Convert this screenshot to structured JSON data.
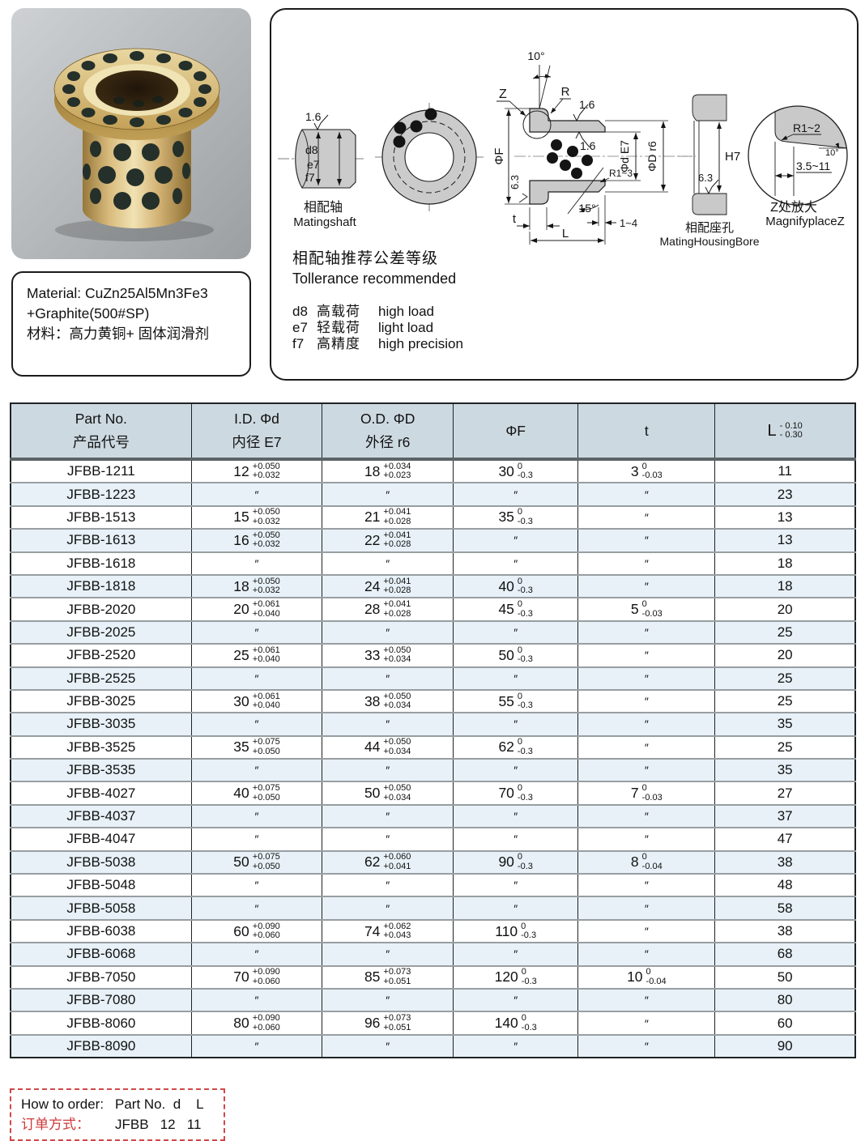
{
  "material": {
    "line1": "Material: CuZn25Al5Mn3Fe3",
    "line2": "+Graphite(500#SP)",
    "line3": "材料：高力黄铜+ 固体润滑剂"
  },
  "diagram": {
    "shaft": {
      "finish": "1.6",
      "d8": "d8",
      "e7": "e7",
      "f7": "f7",
      "cap_cn": "相配轴",
      "cap_en": "Matingshaft"
    },
    "section": {
      "ang10": "10°",
      "z": "Z",
      "r": "R",
      "fin1": "1.6",
      "fin2": "1.6",
      "phiF": "ΦF",
      "fin63": "6.3",
      "phid": "Φd E7",
      "phiD": "ΦD r6",
      "r13": "R1~3",
      "ang15": "15°",
      "t": "t",
      "L": "L",
      "chamfer": "1~4"
    },
    "housing": {
      "h7": "H7",
      "fin": "6.3",
      "cap_cn": "相配座孔",
      "cap_en": "MatingHousingBore"
    },
    "magnify": {
      "r12": "R1~2",
      "ang": "10°",
      "range": "3.5~11",
      "cap_cn": "Z处放大",
      "cap_en": "MagnifyplaceZ"
    },
    "tol": {
      "cn": "相配轴推荐公差等级",
      "en": "Tollerance recommended",
      "items": [
        {
          "c": "d8",
          "cn": "高载荷",
          "en": "high load"
        },
        {
          "c": "e7",
          "cn": "轻载荷",
          "en": "light load"
        },
        {
          "c": "f7",
          "cn": "高精度",
          "en": "high precision"
        }
      ]
    }
  },
  "table": {
    "headers": {
      "part_en": "Part No.",
      "part_cn": "产品代号",
      "id_en": "I.D.  Φd",
      "id_cn": "内径  E7",
      "od_en": "O.D.  ΦD",
      "od_cn": "外径  r6",
      "f": "ΦF",
      "t": "t",
      "L": "L",
      "L_top": "- 0.10",
      "L_bottom": "- 0.30"
    },
    "ditto": "″",
    "rows": [
      {
        "part": "JFBB-1211",
        "id": [
          "12",
          "+0.050",
          "+0.032"
        ],
        "od": [
          "18",
          "+0.034",
          "+0.023"
        ],
        "f": [
          "30",
          "0",
          "-0.3"
        ],
        "t": [
          "3",
          "0",
          "-0.03"
        ],
        "L": "11"
      },
      {
        "part": "JFBB-1223",
        "id": null,
        "od": null,
        "f": null,
        "t": null,
        "L": "23"
      },
      {
        "part": "JFBB-1513",
        "id": [
          "15",
          "+0.050",
          "+0.032"
        ],
        "od": [
          "21",
          "+0.041",
          "+0.028"
        ],
        "f": [
          "35",
          "0",
          "-0.3"
        ],
        "t": null,
        "L": "13"
      },
      {
        "part": "JFBB-1613",
        "id": [
          "16",
          "+0.050",
          "+0.032"
        ],
        "od": [
          "22",
          "+0.041",
          "+0.028"
        ],
        "f": null,
        "t": null,
        "L": "13"
      },
      {
        "part": "JFBB-1618",
        "id": null,
        "od": null,
        "f": null,
        "t": null,
        "L": "18"
      },
      {
        "part": "JFBB-1818",
        "id": [
          "18",
          "+0.050",
          "+0.032"
        ],
        "od": [
          "24",
          "+0.041",
          "+0.028"
        ],
        "f": [
          "40",
          "0",
          "-0.3"
        ],
        "t": null,
        "L": "18"
      },
      {
        "part": "JFBB-2020",
        "id": [
          "20",
          "+0.061",
          "+0.040"
        ],
        "od": [
          "28",
          "+0.041",
          "+0.028"
        ],
        "f": [
          "45",
          "0",
          "-0.3"
        ],
        "t": [
          "5",
          "0",
          "-0.03"
        ],
        "L": "20"
      },
      {
        "part": "JFBB-2025",
        "id": null,
        "od": null,
        "f": null,
        "t": null,
        "L": "25"
      },
      {
        "part": "JFBB-2520",
        "id": [
          "25",
          "+0.061",
          "+0.040"
        ],
        "od": [
          "33",
          "+0.050",
          "+0.034"
        ],
        "f": [
          "50",
          "0",
          "-0.3"
        ],
        "t": null,
        "L": "20"
      },
      {
        "part": "JFBB-2525",
        "id": null,
        "od": null,
        "f": null,
        "t": null,
        "L": "25"
      },
      {
        "part": "JFBB-3025",
        "id": [
          "30",
          "+0.061",
          "+0.040"
        ],
        "od": [
          "38",
          "+0.050",
          "+0.034"
        ],
        "f": [
          "55",
          "0",
          "-0.3"
        ],
        "t": null,
        "L": "25"
      },
      {
        "part": "JFBB-3035",
        "id": null,
        "od": null,
        "f": null,
        "t": null,
        "L": "35"
      },
      {
        "part": "JFBB-3525",
        "id": [
          "35",
          "+0.075",
          "+0.050"
        ],
        "od": [
          "44",
          "+0.050",
          "+0.034"
        ],
        "f": [
          "62",
          "0",
          "-0.3"
        ],
        "t": null,
        "L": "25"
      },
      {
        "part": "JFBB-3535",
        "id": null,
        "od": null,
        "f": null,
        "t": null,
        "L": "35"
      },
      {
        "part": "JFBB-4027",
        "id": [
          "40",
          "+0.075",
          "+0.050"
        ],
        "od": [
          "50",
          "+0.050",
          "+0.034"
        ],
        "f": [
          "70",
          "0",
          "-0.3"
        ],
        "t": [
          "7",
          "0",
          "-0.03"
        ],
        "L": "27"
      },
      {
        "part": "JFBB-4037",
        "id": null,
        "od": null,
        "f": null,
        "t": null,
        "L": "37"
      },
      {
        "part": "JFBB-4047",
        "id": null,
        "od": null,
        "f": null,
        "t": null,
        "L": "47"
      },
      {
        "part": "JFBB-5038",
        "id": [
          "50",
          "+0.075",
          "+0.050"
        ],
        "od": [
          "62",
          "+0.060",
          "+0.041"
        ],
        "f": [
          "90",
          "0",
          "-0.3"
        ],
        "t": [
          "8",
          "0",
          "-0.04"
        ],
        "L": "38"
      },
      {
        "part": "JFBB-5048",
        "id": null,
        "od": null,
        "f": null,
        "t": null,
        "L": "48"
      },
      {
        "part": "JFBB-5058",
        "id": null,
        "od": null,
        "f": null,
        "t": null,
        "L": "58"
      },
      {
        "part": "JFBB-6038",
        "id": [
          "60",
          "+0.090",
          "+0.060"
        ],
        "od": [
          "74",
          "+0.062",
          "+0.043"
        ],
        "f": [
          "110",
          "0",
          "-0.3"
        ],
        "t": null,
        "L": "38"
      },
      {
        "part": "JFBB-6068",
        "id": null,
        "od": null,
        "f": null,
        "t": null,
        "L": "68"
      },
      {
        "part": "JFBB-7050",
        "id": [
          "70",
          "+0.090",
          "+0.060"
        ],
        "od": [
          "85",
          "+0.073",
          "+0.051"
        ],
        "f": [
          "120",
          "0",
          "-0.3"
        ],
        "t": [
          "10",
          "0",
          "-0.04"
        ],
        "L": "50"
      },
      {
        "part": "JFBB-7080",
        "id": null,
        "od": null,
        "f": null,
        "t": null,
        "L": "80"
      },
      {
        "part": "JFBB-8060",
        "id": [
          "80",
          "+0.090",
          "+0.060"
        ],
        "od": [
          "96",
          "+0.073",
          "+0.051"
        ],
        "f": [
          "140",
          "0",
          "-0.3"
        ],
        "t": null,
        "L": "60"
      },
      {
        "part": "JFBB-8090",
        "id": null,
        "od": null,
        "f": null,
        "t": null,
        "L": "90"
      }
    ]
  },
  "order": {
    "line1_label": "How to order:",
    "line1_value": "Part No.  d    L",
    "line2_label": "订单方式：",
    "line2_value": "JFBB   12   11"
  }
}
